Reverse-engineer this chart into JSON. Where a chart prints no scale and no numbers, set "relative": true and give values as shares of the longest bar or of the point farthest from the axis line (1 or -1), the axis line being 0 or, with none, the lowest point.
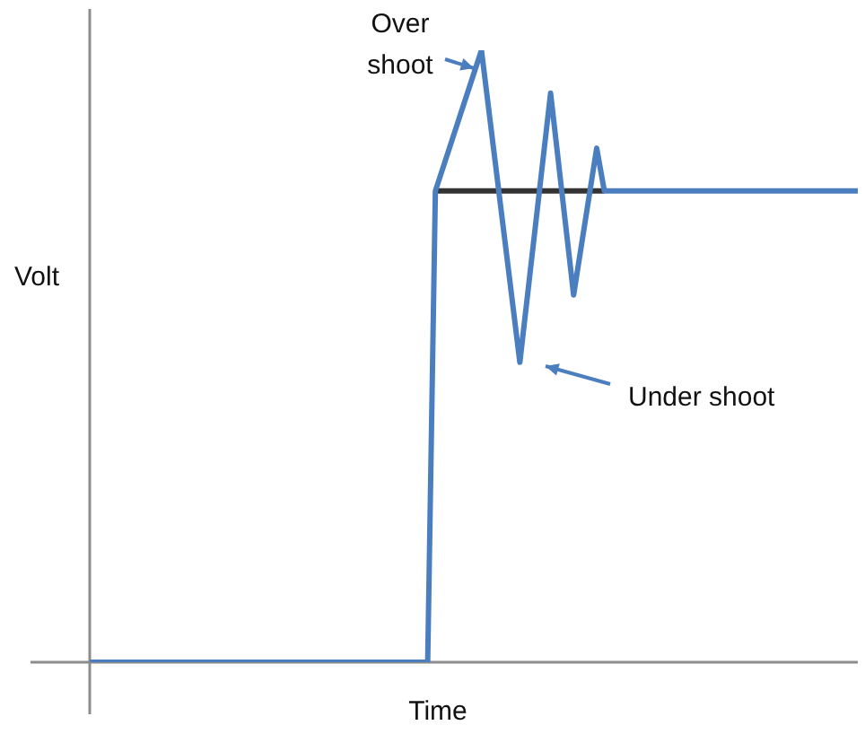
{
  "chart_data": {
    "type": "line",
    "relative": true,
    "xlabel": "Time",
    "ylabel": "Volt",
    "marker": "none",
    "line_style": "solid",
    "categories": [
      null,
      null,
      null,
      null,
      null,
      null,
      null,
      null,
      null,
      null,
      null,
      null,
      null,
      null,
      null,
      null,
      null,
      null,
      null,
      null,
      null,
      null,
      null,
      null,
      null,
      null,
      null,
      null,
      null,
      null,
      null,
      null,
      null,
      null,
      null,
      null,
      null,
      null,
      null,
      null,
      null,
      null,
      null,
      null,
      null,
      null,
      null,
      null,
      null,
      null,
      null,
      null,
      null,
      null,
      null,
      null,
      null,
      null,
      null,
      null,
      null,
      null,
      null,
      null,
      null,
      null,
      null,
      null,
      null,
      null,
      null,
      null,
      null,
      null,
      null,
      null,
      null,
      null,
      null,
      null,
      null,
      null,
      null,
      null,
      null,
      null,
      null,
      null,
      null,
      null,
      null,
      null,
      null,
      null,
      null,
      null,
      null,
      null,
      null,
      null,
      null
    ],
    "series": [
      {
        "color": "#4a7ebf",
        "values": [
          0,
          null,
          null,
          null,
          null,
          null,
          null,
          null,
          null,
          null,
          null,
          null,
          null,
          null,
          null,
          null,
          null,
          null,
          null,
          null,
          null,
          null,
          null,
          null,
          null,
          null,
          null,
          null,
          null,
          null,
          null,
          null,
          null,
          null,
          null,
          null,
          null,
          null,
          null,
          null,
          null,
          null,
          null,
          null,
          0,
          0.77,
          null,
          null,
          null,
          null,
          null,
          1,
          null,
          null,
          null,
          null,
          0.49,
          null,
          null,
          null,
          0.93,
          null,
          null,
          0.6,
          null,
          null,
          0.84,
          0.77,
          null,
          null,
          null,
          null,
          null,
          null,
          null,
          null,
          null,
          null,
          null,
          null,
          null,
          null,
          null,
          null,
          null,
          null,
          null,
          null,
          null,
          null,
          null,
          null,
          null,
          null,
          null,
          null,
          null,
          null,
          null,
          null,
          0.77
        ]
      },
      {
        "color": "#333333",
        "values": [
          null,
          null,
          null,
          null,
          null,
          null,
          null,
          null,
          null,
          null,
          null,
          null,
          null,
          null,
          null,
          null,
          null,
          null,
          null,
          null,
          null,
          null,
          null,
          null,
          null,
          null,
          null,
          null,
          null,
          null,
          null,
          null,
          null,
          null,
          null,
          null,
          null,
          null,
          null,
          null,
          null,
          null,
          null,
          null,
          null,
          0.77,
          null,
          null,
          null,
          null,
          null,
          null,
          null,
          null,
          null,
          null,
          null,
          null,
          null,
          null,
          null,
          null,
          null,
          null,
          null,
          null,
          null,
          0.77,
          null,
          null,
          null,
          null,
          null,
          null,
          null,
          null,
          null,
          null,
          null,
          null,
          null,
          null,
          null,
          null,
          null,
          null,
          null,
          null,
          null,
          null,
          null,
          null,
          null,
          null,
          null,
          null,
          null,
          null,
          null,
          null,
          null
        ]
      }
    ],
    "annotations": [
      "Over\nshoot",
      "Under shoot"
    ]
  }
}
